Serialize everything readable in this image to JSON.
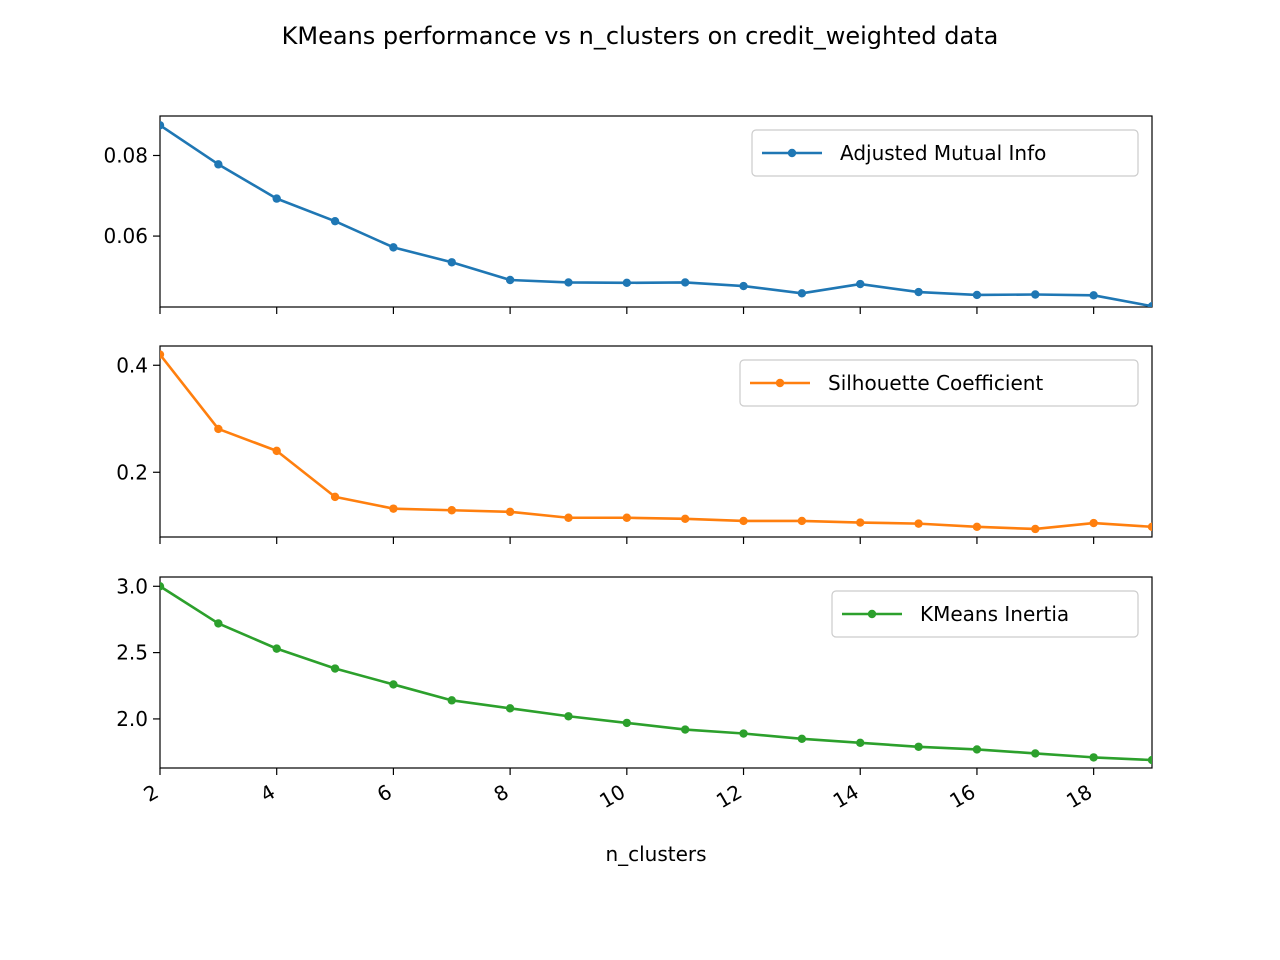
{
  "chart_data": {
    "type": "line",
    "title": "KMeans performance vs n_clusters on credit_weighted data",
    "xlabel": "n_clusters",
    "x": [
      2,
      3,
      4,
      5,
      6,
      7,
      8,
      9,
      10,
      11,
      12,
      13,
      14,
      15,
      16,
      17,
      18,
      19
    ],
    "xlim": [
      2,
      19
    ],
    "xticks": [
      2,
      4,
      6,
      8,
      10,
      12,
      14,
      16,
      18
    ],
    "legend_position": "top-right",
    "grid": false,
    "panels": [
      {
        "series": [
          {
            "name": "Adjusted Mutual Info",
            "color": "#1f77b4",
            "values": [
              0.0875,
              0.0778,
              0.0693,
              0.0637,
              0.0572,
              0.0535,
              0.0491,
              0.0485,
              0.0484,
              0.0485,
              0.0476,
              0.0458,
              0.0481,
              0.0461,
              0.0454,
              0.0455,
              0.0453,
              0.0426
            ]
          }
        ],
        "ylim": [
          0.0424,
          0.0898
        ],
        "yticks": [
          0.06,
          0.08
        ],
        "ytick_labels": [
          "0.06",
          "0.08"
        ]
      },
      {
        "series": [
          {
            "name": "Silhouette Coefficient",
            "color": "#ff7f0e",
            "values": [
              0.42,
              0.281,
              0.24,
              0.154,
              0.132,
              0.129,
              0.126,
              0.115,
              0.115,
              0.113,
              0.109,
              0.109,
              0.106,
              0.104,
              0.098,
              0.094,
              0.105,
              0.098
            ]
          }
        ],
        "ylim": [
          0.079,
          0.436
        ],
        "yticks": [
          0.2,
          0.4
        ],
        "ytick_labels": [
          "0.2",
          "0.4"
        ]
      },
      {
        "series": [
          {
            "name": "KMeans Inertia",
            "color": "#2ca02c",
            "values": [
              3.0,
              2.72,
              2.53,
              2.38,
              2.26,
              2.14,
              2.08,
              2.02,
              1.97,
              1.92,
              1.89,
              1.85,
              1.82,
              1.79,
              1.77,
              1.74,
              1.71,
              1.69
            ]
          }
        ],
        "ylim": [
          1.63,
          3.07
        ],
        "yticks": [
          2.0,
          2.5,
          3.0
        ],
        "ytick_labels": [
          "2.0",
          "2.5",
          "3.0"
        ]
      }
    ]
  }
}
